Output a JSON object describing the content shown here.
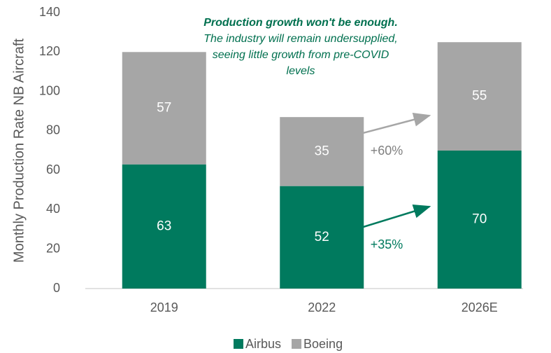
{
  "chart_data": {
    "type": "stacked_bar",
    "ylabel": "Monthly Production Rate NB Aircraft",
    "categories": [
      "2019",
      "2022",
      "2026E"
    ],
    "series": [
      {
        "name": "Airbus",
        "color": "#007a5e",
        "values": [
          63,
          52,
          70
        ]
      },
      {
        "name": "Boeing",
        "color": "#a6a6a6",
        "values": [
          57,
          35,
          55
        ]
      }
    ],
    "ylim": [
      0,
      140
    ],
    "yticks": [
      0,
      20,
      40,
      60,
      80,
      100,
      120,
      140
    ],
    "legend": "bottom",
    "annotation": {
      "title": "Production growth won't be enough.",
      "lines": [
        "The industry will remain undersupplied,",
        "seeing little growth from pre-COVID",
        "levels"
      ]
    },
    "growth_labels": [
      {
        "text": "+60%",
        "color": "#808080"
      },
      {
        "text": "+35%",
        "color": "#007a5e"
      }
    ]
  }
}
